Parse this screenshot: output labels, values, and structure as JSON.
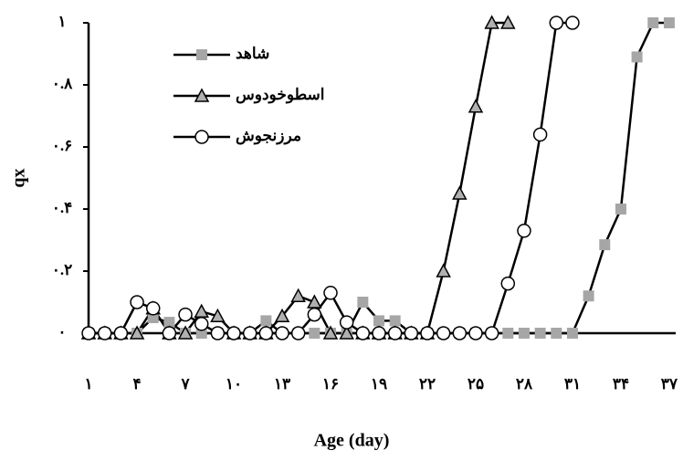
{
  "chart_data": {
    "type": "line",
    "x_label": "Age (day)",
    "y_label": "qx",
    "x": [
      1,
      2,
      3,
      4,
      5,
      6,
      7,
      8,
      9,
      10,
      11,
      12,
      13,
      14,
      15,
      16,
      17,
      18,
      19,
      20,
      21,
      22,
      23,
      24,
      25,
      26,
      27,
      28,
      29,
      30,
      31,
      32,
      33,
      34,
      35,
      36,
      37
    ],
    "xlim": [
      0.6,
      37.4
    ],
    "xticks": [
      {
        "value": 1,
        "label": "١"
      },
      {
        "value": 4,
        "label": "۴"
      },
      {
        "value": 7,
        "label": "٧"
      },
      {
        "value": 10,
        "label": "١٠"
      },
      {
        "value": 13,
        "label": "١٣"
      },
      {
        "value": 16,
        "label": "١۶"
      },
      {
        "value": 19,
        "label": "١٩"
      },
      {
        "value": 22,
        "label": "٢٢"
      },
      {
        "value": 25,
        "label": "٢۵"
      },
      {
        "value": 28,
        "label": "٢٨"
      },
      {
        "value": 31,
        "label": "٣١"
      },
      {
        "value": 34,
        "label": "٣۴"
      },
      {
        "value": 37,
        "label": "٣٧"
      }
    ],
    "ylim": [
      0,
      1
    ],
    "yticks": [
      {
        "value": 0,
        "label": "٠"
      },
      {
        "value": 0.2,
        "label": "٠.٢"
      },
      {
        "value": 0.4,
        "label": "٠.۴"
      },
      {
        "value": 0.6,
        "label": "٠.۶"
      },
      {
        "value": 0.8,
        "label": "٠.٨"
      },
      {
        "value": 1,
        "label": "١"
      }
    ],
    "series": [
      {
        "name": "شاهد",
        "color": "#000000",
        "marker": "square",
        "marker_fill": "#a6a6a6",
        "values": [
          0,
          0,
          0,
          0,
          0.05,
          0.035,
          0,
          0,
          0,
          0,
          0,
          0.04,
          0,
          0,
          0,
          0,
          0,
          0.1,
          0.04,
          0.04,
          0,
          0,
          0,
          0,
          0,
          0,
          0,
          0,
          0,
          0,
          0,
          0.12,
          0.285,
          0.4,
          0.89,
          1,
          1
        ]
      },
      {
        "name": "اسطوخودوس",
        "color": "#000000",
        "marker": "triangle",
        "marker_fill": "#b0b0b0",
        "values": [
          0,
          0,
          0,
          0,
          0.08,
          0,
          0,
          0.07,
          0.055,
          0,
          0,
          0,
          0.055,
          0.12,
          0.1,
          0,
          0,
          0,
          0,
          0,
          0,
          0,
          0.2,
          0.45,
          0.73,
          1,
          1,
          null,
          null,
          null,
          null,
          null,
          null,
          null,
          null,
          null,
          null
        ]
      },
      {
        "name": "مرزنجوش",
        "color": "#000000",
        "marker": "circle",
        "marker_fill": "#ffffff",
        "values": [
          0,
          0,
          0,
          0.1,
          0.08,
          0,
          0.06,
          0.03,
          0,
          0,
          0,
          0,
          0,
          0,
          0.06,
          0.13,
          0.035,
          0,
          0,
          0,
          0,
          0,
          0,
          0,
          0,
          0,
          0.16,
          0.33,
          0.64,
          1,
          1,
          null,
          null,
          null,
          null,
          null,
          null
        ]
      }
    ]
  }
}
